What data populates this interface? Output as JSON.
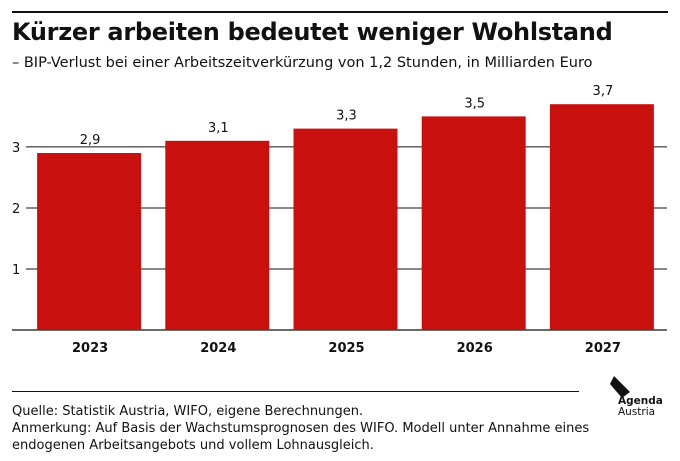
{
  "header": {
    "title": "Kürzer arbeiten bedeutet weniger Wohlstand",
    "subtitle": "– BIP-Verlust bei einer Arbeitszeitverkürzung von 1,2 Stunden, in Milliarden Euro"
  },
  "chart_data": {
    "type": "bar",
    "categories": [
      "2023",
      "2024",
      "2025",
      "2026",
      "2027"
    ],
    "values": [
      2.9,
      3.1,
      3.3,
      3.5,
      3.7
    ],
    "value_labels": [
      "2,9",
      "3,1",
      "3,3",
      "3,5",
      "3,7"
    ],
    "yticks": [
      1,
      2,
      3
    ],
    "ylim": [
      0,
      3.9
    ],
    "grid": true,
    "bar_color": "#c8100f",
    "title": "Kürzer arbeiten bedeutet weniger Wohlstand",
    "xlabel": "",
    "ylabel": ""
  },
  "footer": {
    "source": "Quelle: Statistik Austria, WIFO, eigene Berechnungen.",
    "note": "Anmerkung: Auf Basis der Wachstumsprognosen des WIFO. Modell unter Annahme eines endogenen Arbeitsangebots und vollem Lohnausgleich."
  },
  "logo": {
    "line1": "Agenda",
    "line2": "Austria",
    "icon": "agenda-austria-logo-icon"
  }
}
